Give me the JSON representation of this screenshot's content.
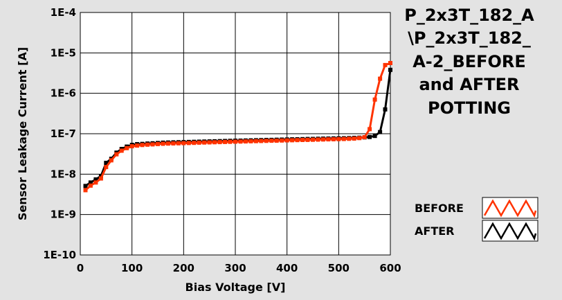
{
  "chart_data": {
    "type": "line",
    "title_lines": [
      "P_2x3T_182_A",
      "\\P_2x3T_182_",
      "A-2_BEFORE",
      "and AFTER",
      "POTTING"
    ],
    "xlabel": "Bias Voltage [V]",
    "ylabel": "Sensor Leakage Current [A]",
    "xlim": [
      0,
      600
    ],
    "ylim": [
      1e-10,
      0.0001
    ],
    "yscale": "log",
    "grid": true,
    "x_ticks": [
      0,
      100,
      200,
      300,
      400,
      500,
      600
    ],
    "x_tick_labels": [
      "0",
      "100",
      "200",
      "300",
      "400",
      "500",
      "600"
    ],
    "y_ticks": [
      1e-10,
      1e-09,
      1e-08,
      1e-07,
      1e-06,
      1e-05,
      0.0001
    ],
    "y_tick_labels": [
      "1E-10",
      "1E-9",
      "1E-8",
      "1E-7",
      "1E-6",
      "1E-5",
      "1E-4"
    ],
    "legend_position": "bottom-right",
    "series": [
      {
        "name": "AFTER",
        "color": "#000000",
        "x": [
          10,
          20,
          30,
          40,
          50,
          60,
          70,
          80,
          90,
          100,
          110,
          120,
          130,
          140,
          150,
          160,
          170,
          180,
          190,
          200,
          210,
          220,
          230,
          240,
          250,
          260,
          270,
          280,
          290,
          300,
          310,
          320,
          330,
          340,
          350,
          360,
          370,
          380,
          390,
          400,
          410,
          420,
          430,
          440,
          450,
          460,
          470,
          480,
          490,
          500,
          510,
          520,
          530,
          540,
          550,
          560,
          570,
          580,
          590,
          600
        ],
        "y": [
          5.1e-09,
          6.2e-09,
          7.4e-09,
          9e-09,
          1.9e-08,
          2.4e-08,
          3.4e-08,
          4.2e-08,
          4.8e-08,
          5.3e-08,
          5.5e-08,
          5.6e-08,
          5.7e-08,
          5.8e-08,
          5.9e-08,
          6e-08,
          6.05e-08,
          6.1e-08,
          6.15e-08,
          6.2e-08,
          6.25e-08,
          6.3e-08,
          6.35e-08,
          6.4e-08,
          6.45e-08,
          6.5e-08,
          6.55e-08,
          6.6e-08,
          6.65e-08,
          6.7e-08,
          6.75e-08,
          6.8e-08,
          6.85e-08,
          6.9e-08,
          6.95e-08,
          7e-08,
          7.05e-08,
          7.1e-08,
          7.15e-08,
          7.2e-08,
          7.25e-08,
          7.3e-08,
          7.35e-08,
          7.4e-08,
          7.45e-08,
          7.5e-08,
          7.55e-08,
          7.6e-08,
          7.65e-08,
          7.7e-08,
          7.75e-08,
          7.8e-08,
          7.9e-08,
          8e-08,
          8.1e-08,
          8.3e-08,
          8.8e-08,
          1.1e-07,
          4e-07,
          3.8e-06
        ]
      },
      {
        "name": "BEFORE",
        "color": "#ff3300",
        "x": [
          10,
          20,
          30,
          40,
          50,
          60,
          70,
          80,
          90,
          100,
          110,
          120,
          130,
          140,
          150,
          160,
          170,
          180,
          190,
          200,
          210,
          220,
          230,
          240,
          250,
          260,
          270,
          280,
          290,
          300,
          310,
          320,
          330,
          340,
          350,
          360,
          370,
          380,
          390,
          400,
          410,
          420,
          430,
          440,
          450,
          460,
          470,
          480,
          490,
          500,
          510,
          520,
          530,
          540,
          550,
          560,
          570,
          580,
          590,
          600
        ],
        "y": [
          4e-09,
          5.2e-09,
          6.2e-09,
          7.8e-09,
          1.5e-08,
          2.2e-08,
          3.1e-08,
          3.8e-08,
          4.4e-08,
          4.9e-08,
          5.1e-08,
          5.25e-08,
          5.35e-08,
          5.45e-08,
          5.55e-08,
          5.65e-08,
          5.7e-08,
          5.75e-08,
          5.8e-08,
          5.85e-08,
          5.9e-08,
          5.95e-08,
          6e-08,
          6.05e-08,
          6.1e-08,
          6.15e-08,
          6.2e-08,
          6.25e-08,
          6.3e-08,
          6.35e-08,
          6.4e-08,
          6.45e-08,
          6.5e-08,
          6.55e-08,
          6.6e-08,
          6.65e-08,
          6.7e-08,
          6.75e-08,
          6.8e-08,
          6.85e-08,
          6.9e-08,
          6.95e-08,
          7e-08,
          7.05e-08,
          7.1e-08,
          7.15e-08,
          7.2e-08,
          7.25e-08,
          7.3e-08,
          7.35e-08,
          7.4e-08,
          7.5e-08,
          7.6e-08,
          7.8e-08,
          8.2e-08,
          1.3e-07,
          7e-07,
          2.3e-06,
          5e-06,
          5.6e-06
        ]
      }
    ]
  }
}
